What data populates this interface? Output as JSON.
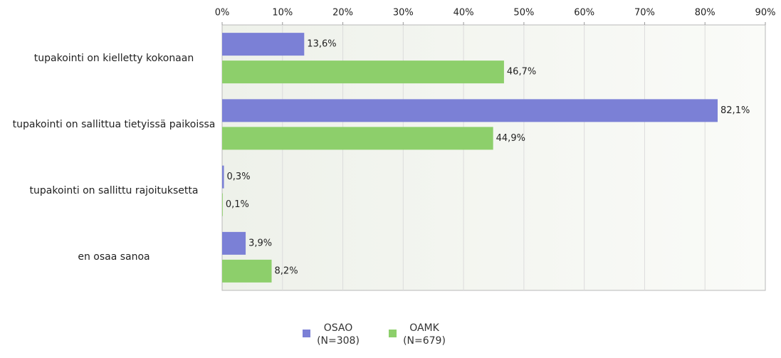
{
  "chart_data": {
    "type": "bar",
    "orientation": "horizontal",
    "categories": [
      "tupakointi on kielletty kokonaan",
      "tupakointi on sallittua tietyissä paikoissa",
      "tupakointi on sallittu rajoituksetta",
      "en osaa sanoa"
    ],
    "series": [
      {
        "name": "OSAO (N=308)",
        "color": "#7b80d6",
        "values": [
          13.6,
          82.1,
          0.3,
          3.9
        ],
        "value_labels": [
          "13,6%",
          "82,1%",
          "0,3%",
          "3,9%"
        ]
      },
      {
        "name": "OAMK (N=679)",
        "color": "#8dcf6b",
        "values": [
          46.7,
          44.9,
          0.1,
          8.2
        ],
        "value_labels": [
          "46,7%",
          "44,9%",
          "0,1%",
          "8,2%"
        ]
      }
    ],
    "xlim": [
      0,
      90
    ],
    "xticks": [
      {
        "value": 0,
        "label": "0%"
      },
      {
        "value": 10,
        "label": "10%"
      },
      {
        "value": 20,
        "label": "20%"
      },
      {
        "value": 30,
        "label": "30%"
      },
      {
        "value": 40,
        "label": "40%"
      },
      {
        "value": 50,
        "label": "50%"
      },
      {
        "value": 60,
        "label": "60%"
      },
      {
        "value": 70,
        "label": "70%"
      },
      {
        "value": 80,
        "label": "80%"
      },
      {
        "value": 90,
        "label": "90%"
      }
    ],
    "grid": true,
    "legend": "bottom"
  }
}
